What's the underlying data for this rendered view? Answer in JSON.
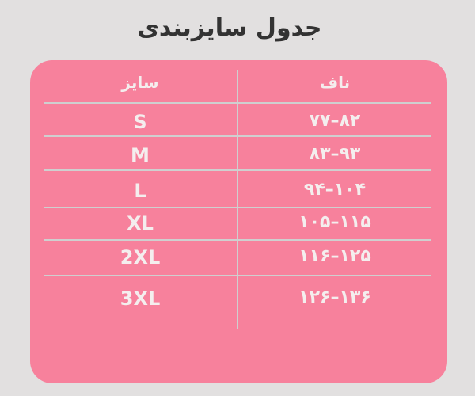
{
  "title": "جدول سایزبندی",
  "table": {
    "headers": {
      "size": "سایز",
      "waist": "ناف"
    },
    "rows": [
      {
        "size": "S",
        "waist": "۷۷–۸۲"
      },
      {
        "size": "M",
        "waist": "۸۳–۹۳"
      },
      {
        "size": "L",
        "waist": "۹۴–۱۰۴"
      },
      {
        "size": "XL",
        "waist": "۱۰۵–۱۱۵"
      },
      {
        "size": "2XL",
        "waist": "۱۱۶–۱۲۵"
      },
      {
        "size": "3XL",
        "waist": "۱۲۶–۱۳۶"
      }
    ]
  },
  "colors": {
    "background": "#e2e0e0",
    "card": "#f7819c",
    "text": "#f4eeee",
    "lines": "#cfcfcf"
  }
}
